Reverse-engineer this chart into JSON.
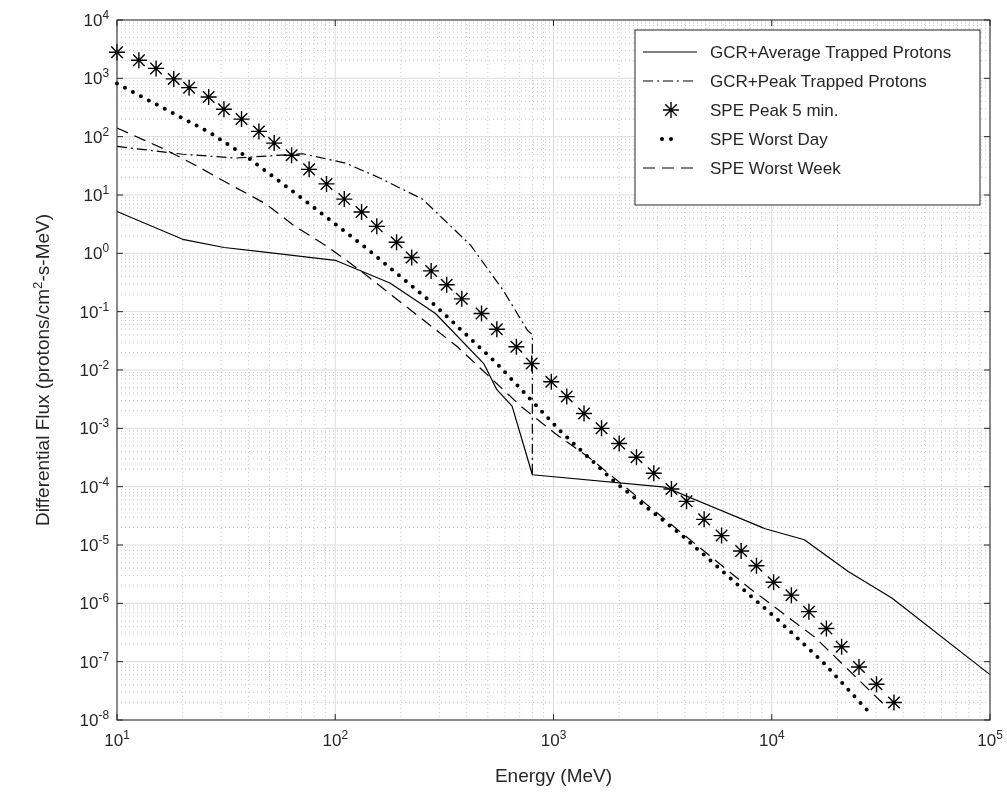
{
  "chart_data": {
    "type": "line",
    "xlabel": "Energy (MeV)",
    "ylabel": "Differential Flux (protons/cm$^{2}$-s-MeV)",
    "log": "xy",
    "grid": true,
    "legend": "top right",
    "xlim": [
      10,
      100000
    ],
    "ylim": [
      1e-08,
      10000
    ],
    "xticks": [
      {
        "value": 10,
        "label": "10$^{1}$"
      },
      {
        "value": 100,
        "label": "10$^{2}$"
      },
      {
        "value": 1000,
        "label": "10$^{3}$"
      },
      {
        "value": 10000,
        "label": "10$^{4}$"
      },
      {
        "value": 100000,
        "label": "10$^{5}$"
      }
    ],
    "yticks": [
      {
        "value": 1e-08,
        "label": "10$^{-8}$"
      },
      {
        "value": 1e-07,
        "label": "10$^{-7}$"
      },
      {
        "value": 1e-06,
        "label": "10$^{-6}$"
      },
      {
        "value": 1e-05,
        "label": "10$^{-5}$"
      },
      {
        "value": 0.0001,
        "label": "10$^{-4}$"
      },
      {
        "value": 0.001,
        "label": "10$^{-3}$"
      },
      {
        "value": 0.01,
        "label": "10$^{-2}$"
      },
      {
        "value": 0.1,
        "label": "10$^{-1}$"
      },
      {
        "value": 1,
        "label": "10$^{0}$"
      },
      {
        "value": 10,
        "label": "10$^{1}$"
      },
      {
        "value": 100,
        "label": "10$^{2}$"
      },
      {
        "value": 1000,
        "label": "10$^{3}$"
      },
      {
        "value": 10000,
        "label": "10$^{4}$"
      }
    ],
    "series": [
      {
        "name": "GCR+Average Trapped Protons",
        "color": "#000000",
        "line_style": "solid",
        "x": [
          10,
          20,
          31,
          100,
          178,
          288,
          479,
          550,
          646,
          800,
          3240,
          9330,
          14100,
          22400,
          35500,
          100000
        ],
        "values": [
          5.2,
          1.74,
          1.26,
          0.76,
          0.31,
          0.093,
          0.0129,
          0.0046,
          0.0024,
          0.00016,
          9.8e-05,
          1.9e-05,
          1.23e-05,
          3.5e-06,
          1.23e-06,
          6e-08
        ]
      },
      {
        "name": "GCR+Peak Trapped Protons",
        "color": "#000000",
        "line_style": "dashdot",
        "x": [
          10,
          20,
          35,
          71,
          112,
          158,
          251,
          417,
          589,
          759,
          800,
          800
        ],
        "values": [
          68,
          50,
          43,
          51,
          35,
          20,
          8.5,
          1.38,
          0.23,
          0.048,
          0.04,
          0.00016
        ]
      },
      {
        "name": "SPE Peak 5 min.",
        "color": "#000000",
        "type": "scatter",
        "marker": "cross",
        "x": [
          10,
          12.6,
          15.1,
          18.2,
          21.4,
          26.3,
          30.9,
          37.2,
          44.7,
          52.5,
          63.1,
          75.9,
          91.2,
          110,
          132,
          155,
          191,
          224,
          275,
          324,
          380,
          468,
          550,
          676,
          794,
          977,
          1150,
          1380,
          1660,
          2000,
          2400,
          2880,
          3470,
          4070,
          4900,
          5890,
          7240,
          8510,
          10200,
          12300,
          14800,
          17800,
          20900,
          25100,
          30200,
          36300
        ],
        "values": [
          2800,
          2040,
          1480,
          977,
          692,
          479,
          295,
          200,
          123,
          77.6,
          47.9,
          27.5,
          15.5,
          8.5,
          5.1,
          2.9,
          1.55,
          0.85,
          0.5,
          0.29,
          0.166,
          0.093,
          0.05,
          0.025,
          0.0129,
          0.0063,
          0.0035,
          0.0018,
          0.001,
          0.00055,
          0.00032,
          0.00017,
          9.1e-05,
          5.6e-05,
          2.75e-05,
          1.45e-05,
          7.9e-06,
          4.4e-06,
          2.3e-06,
          1.38e-06,
          7.2e-07,
          3.7e-07,
          1.8e-07,
          8.1e-08,
          4.1e-08,
          2e-08
        ]
      },
      {
        "name": "SPE Worst Day",
        "color": "#000000",
        "line_style": "dotted",
        "x": [
          10,
          26.9,
          39.8,
          75.9,
          141,
          288,
          550,
          1070,
          1910,
          3890,
          6460,
          10500,
          17000,
          27500
        ],
        "values": [
          813,
          115,
          43.7,
          7.1,
          1.17,
          0.126,
          0.0129,
          0.00091,
          0.00012,
          1.45e-05,
          2.7e-06,
          5.5e-07,
          1.02e-07,
          1.45e-08
        ]
      },
      {
        "name": "SPE Worst Week",
        "color": "#000000",
        "line_style": "dashed",
        "x": [
          10,
          16.2,
          23.4,
          33.1,
          47.9,
          64.6,
          93.3,
          129,
          182,
          257,
          363,
          708,
          1020,
          1480,
          7940,
          15800,
          32400
        ],
        "values": [
          141,
          63,
          31,
          15,
          7.1,
          3,
          1.26,
          0.52,
          0.19,
          0.069,
          0.025,
          0.0024,
          0.00081,
          0.0003,
          1.8e-06,
          2.6e-07,
          1.9e-08
        ]
      }
    ]
  }
}
